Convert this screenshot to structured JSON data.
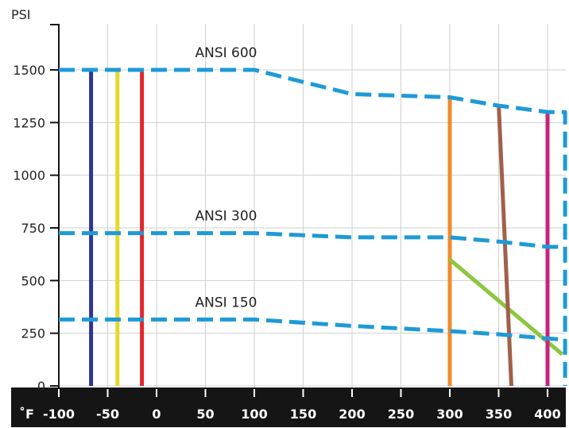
{
  "chart_data": {
    "type": "line",
    "ylabel": "PSI",
    "xlabel": "˚F",
    "xlim": [
      -100,
      400
    ],
    "ylim": [
      0,
      1500
    ],
    "x_ticks": [
      -100,
      -50,
      0,
      50,
      100,
      150,
      200,
      250,
      300,
      350,
      400
    ],
    "x_tick_labels": [
      "-100",
      "-50",
      "0",
      "50",
      "100",
      "150",
      "200",
      "250",
      "300",
      "350",
      "400"
    ],
    "y_ticks": [
      0,
      250,
      500,
      750,
      1000,
      1250,
      1500
    ],
    "y_tick_labels": [
      "0",
      "250",
      "500",
      "750",
      "1000",
      "1250",
      "1500"
    ],
    "grid": true,
    "series": [
      {
        "name": "ANSI 600",
        "style": "dashed",
        "color": "#1E9AD6",
        "points": [
          [
            -100,
            1500
          ],
          [
            100,
            1500
          ],
          [
            200,
            1385
          ],
          [
            300,
            1370
          ],
          [
            350,
            1330
          ],
          [
            400,
            1300
          ],
          [
            418,
            1300
          ],
          [
            418,
            0
          ]
        ]
      },
      {
        "name": "ANSI 300",
        "style": "dashed",
        "color": "#1E9AD6",
        "points": [
          [
            -100,
            725
          ],
          [
            100,
            725
          ],
          [
            200,
            705
          ],
          [
            300,
            705
          ],
          [
            350,
            685
          ],
          [
            400,
            660
          ],
          [
            418,
            660
          ]
        ]
      },
      {
        "name": "ANSI 150",
        "style": "dashed",
        "color": "#1E9AD6",
        "points": [
          [
            -100,
            315
          ],
          [
            100,
            315
          ],
          [
            200,
            285
          ],
          [
            300,
            260
          ],
          [
            350,
            245
          ],
          [
            400,
            225
          ],
          [
            418,
            220
          ]
        ]
      },
      {
        "style": "solid",
        "color": "#2E3592",
        "points": [
          [
            -67,
            1500
          ],
          [
            -67,
            0
          ]
        ]
      },
      {
        "style": "solid",
        "color": "#E8D72A",
        "points": [
          [
            -40,
            1500
          ],
          [
            -40,
            0
          ]
        ]
      },
      {
        "style": "solid",
        "color": "#E3262B",
        "points": [
          [
            -15,
            1500
          ],
          [
            -15,
            0
          ]
        ]
      },
      {
        "style": "solid",
        "color": "#F08A2E",
        "points": [
          [
            300,
            1370
          ],
          [
            300,
            0
          ]
        ]
      },
      {
        "style": "solid",
        "color": "#8DC63F",
        "points": [
          [
            300,
            600
          ],
          [
            415,
            150
          ]
        ]
      },
      {
        "style": "solid",
        "color": "#A0604A",
        "points": [
          [
            350,
            1335
          ],
          [
            363,
            0
          ]
        ]
      },
      {
        "style": "solid",
        "color": "#C8237A",
        "points": [
          [
            400,
            1300
          ],
          [
            400,
            0
          ]
        ]
      }
    ]
  }
}
